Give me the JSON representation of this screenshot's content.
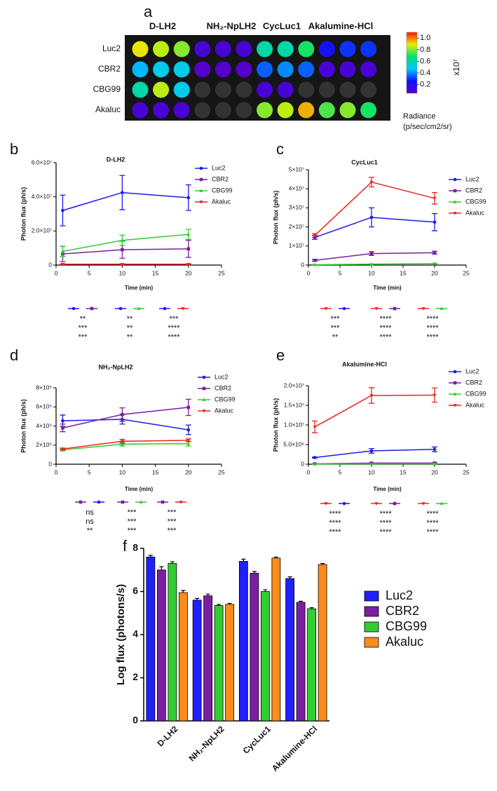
{
  "chart_data": [
    {
      "type": "heatmap",
      "panel": "a",
      "column_groups": [
        "D-LH2",
        "NH₂-NpLH2",
        "CycLuc1",
        "Akalumine-HCl"
      ],
      "rows": [
        "Luc2",
        "CBR2",
        "CBG99",
        "Akaluc"
      ],
      "values": [
        [
          0.9,
          0.85,
          0.8,
          0.1,
          0.1,
          0.1,
          0.6,
          0.6,
          0.7,
          0.25,
          0.3,
          0.3
        ],
        [
          0.45,
          0.5,
          0.5,
          0.06,
          0.06,
          0.06,
          0.35,
          0.4,
          0.35,
          0.1,
          0.1,
          0.1
        ],
        [
          0.6,
          0.85,
          0.5,
          0,
          0,
          0,
          0.1,
          0.1,
          0,
          0,
          0,
          0
        ],
        [
          0.1,
          0.1,
          0.1,
          0,
          0,
          0,
          0.8,
          0.85,
          0.95,
          0.75,
          0.8,
          0.7
        ]
      ],
      "clim": [
        0.05,
        1.1
      ],
      "cticks": [
        0.2,
        0.4,
        0.6,
        0.8,
        {
          "value": 1,
          "label": "1.0"
        }
      ],
      "colorbar_multiplier": "x10⁷",
      "colorbar_label": [
        "Radiance",
        "(p/sec/cm2/sr)"
      ],
      "colormap": [
        "#5a00c8",
        "#1010ff",
        "#00c8ff",
        "#00e070",
        "#e8f000",
        "#ff1010"
      ]
    },
    {
      "type": "line",
      "panel": "b",
      "title": "D-LH2",
      "xlabel": "Time (min)",
      "ylabel": "Photon flux (ph/s)",
      "x": [
        1,
        10,
        20
      ],
      "xlim": [
        0,
        25
      ],
      "xticks": [
        0,
        5,
        10,
        15,
        20,
        25
      ],
      "ylim": [
        0,
        60000000
      ],
      "yticks": [
        0,
        {
          "value": 20000000,
          "label": "2.0×10⁷"
        },
        {
          "value": 40000000,
          "label": "4.0×10⁷"
        },
        {
          "value": 60000000,
          "label": "6.0×10⁷"
        }
      ],
      "series": [
        {
          "name": "Luc2",
          "color": "#1a1aee",
          "marker": "circle",
          "values": [
            32000000,
            42500000,
            39500000
          ],
          "errors": [
            9000000,
            10000000,
            7500000
          ]
        },
        {
          "name": "CBR2",
          "color": "#7a1fa0",
          "marker": "square",
          "values": [
            6500000,
            9000000,
            9500000
          ],
          "errors": [
            4500000,
            5000000,
            5000000
          ]
        },
        {
          "name": "CBG99",
          "color": "#2ecc2e",
          "marker": "triangle",
          "values": [
            8000000,
            14500000,
            18000000
          ],
          "errors": [
            3000000,
            3000000,
            3000000
          ]
        },
        {
          "name": "Akaluc",
          "color": "#ee2222",
          "marker": "triangle-down",
          "values": [
            500000,
            500000,
            500000
          ],
          "errors": [
            200000,
            200000,
            200000
          ]
        }
      ],
      "comparisons": [
        {
          "pair": [
            0,
            1
          ],
          "stars": [
            "**",
            "***",
            "***"
          ]
        },
        {
          "pair": [
            0,
            2
          ],
          "stars": [
            "**",
            "**",
            "**"
          ]
        },
        {
          "pair": [
            0,
            3
          ],
          "stars": [
            "***",
            "****",
            "****"
          ]
        }
      ]
    },
    {
      "type": "line",
      "panel": "c",
      "title": "CycLuc1",
      "xlabel": "Time (min)",
      "ylabel": "Photon flux (ph/s)",
      "x": [
        1,
        10,
        20
      ],
      "xlim": [
        0,
        25
      ],
      "xticks": [
        0,
        5,
        10,
        15,
        20,
        25
      ],
      "ylim": [
        0,
        50000000
      ],
      "yticks": [
        0,
        {
          "value": 10000000,
          "label": "1×10⁷"
        },
        {
          "value": 20000000,
          "label": "2×10⁷"
        },
        {
          "value": 30000000,
          "label": "3×10⁷"
        },
        {
          "value": 40000000,
          "label": "4×10⁷"
        },
        {
          "value": 50000000,
          "label": "5×10⁷"
        }
      ],
      "series": [
        {
          "name": "Luc2",
          "color": "#1a1aee",
          "marker": "circle",
          "values": [
            14500000,
            25000000,
            22500000
          ],
          "errors": [
            1000000,
            5000000,
            4500000
          ]
        },
        {
          "name": "CBR2",
          "color": "#7a1fa0",
          "marker": "square",
          "values": [
            2500000,
            6000000,
            6500000
          ],
          "errors": [
            500000,
            1000000,
            800000
          ]
        },
        {
          "name": "CBG99",
          "color": "#2ecc2e",
          "marker": "triangle",
          "values": [
            200000,
            500000,
            800000
          ],
          "errors": [
            100000,
            100000,
            100000
          ]
        },
        {
          "name": "Akaluc",
          "color": "#ee2222",
          "marker": "triangle-down",
          "values": [
            15500000,
            43500000,
            35000000
          ],
          "errors": [
            1000000,
            2500000,
            3000000
          ]
        }
      ],
      "comparisons": [
        {
          "pair": [
            3,
            0
          ],
          "stars": [
            "***",
            "***",
            "**"
          ]
        },
        {
          "pair": [
            3,
            1
          ],
          "stars": [
            "****",
            "****",
            "****"
          ]
        },
        {
          "pair": [
            3,
            2
          ],
          "stars": [
            "****",
            "****",
            "****"
          ]
        }
      ]
    },
    {
      "type": "line",
      "panel": "d",
      "title": "NH₂-NpLH2",
      "xlabel": "Time (min)",
      "ylabel": "Photon flux (ph/s)",
      "x": [
        1,
        10,
        20
      ],
      "xlim": [
        0,
        25
      ],
      "xticks": [
        0,
        5,
        10,
        15,
        20,
        25
      ],
      "ylim": [
        0,
        800000
      ],
      "yticks": [
        0,
        {
          "value": 200000,
          "label": "2×10⁵"
        },
        {
          "value": 400000,
          "label": "4×10⁵"
        },
        {
          "value": 600000,
          "label": "6×10⁵"
        },
        {
          "value": 800000,
          "label": "8×10⁵"
        }
      ],
      "series": [
        {
          "name": "Luc2",
          "color": "#1a1aee",
          "marker": "circle",
          "values": [
            455000,
            470000,
            360000
          ],
          "errors": [
            60000,
            50000,
            50000
          ]
        },
        {
          "name": "CBR2",
          "color": "#7a1fa0",
          "marker": "square",
          "values": [
            380000,
            520000,
            595000
          ],
          "errors": [
            40000,
            70000,
            85000
          ]
        },
        {
          "name": "CBG99",
          "color": "#2ecc2e",
          "marker": "triangle",
          "values": [
            150000,
            210000,
            215000
          ],
          "errors": [
            10000,
            20000,
            25000
          ]
        },
        {
          "name": "Akaluc",
          "color": "#ee2222",
          "marker": "triangle-down",
          "values": [
            160000,
            240000,
            250000
          ],
          "errors": [
            10000,
            20000,
            15000
          ]
        }
      ],
      "comparisons": [
        {
          "pair": [
            1,
            0
          ],
          "stars": [
            "ns",
            "ns",
            "**"
          ]
        },
        {
          "pair": [
            1,
            2
          ],
          "stars": [
            "***",
            "***",
            "***"
          ]
        },
        {
          "pair": [
            1,
            3
          ],
          "stars": [
            "***",
            "***",
            "***"
          ]
        }
      ]
    },
    {
      "type": "line",
      "panel": "e",
      "title": "Akalumine-HCl",
      "xlabel": "Time (min)",
      "ylabel": "Photon flux (ph/s)",
      "x": [
        1,
        10,
        20
      ],
      "xlim": [
        0,
        25
      ],
      "xticks": [
        0,
        5,
        10,
        15,
        20,
        25
      ],
      "ylim": [
        0,
        20000000
      ],
      "yticks": [
        0,
        {
          "value": 5000000,
          "label": "5.0×10⁶"
        },
        {
          "value": 10000000,
          "label": "1.0×10⁷"
        },
        {
          "value": 15000000,
          "label": "1.5×10⁷"
        },
        {
          "value": 20000000,
          "label": "2.0×10⁷"
        }
      ],
      "series": [
        {
          "name": "Luc2",
          "color": "#1a1aee",
          "marker": "circle",
          "values": [
            1700000,
            3400000,
            3800000
          ],
          "errors": [
            100000,
            600000,
            600000
          ]
        },
        {
          "name": "CBR2",
          "color": "#7a1fa0",
          "marker": "square",
          "values": [
            100000,
            300000,
            300000
          ],
          "errors": [
            50000,
            50000,
            50000
          ]
        },
        {
          "name": "CBG99",
          "color": "#2ecc2e",
          "marker": "triangle",
          "values": [
            50000,
            100000,
            100000
          ],
          "errors": [
            20000,
            20000,
            20000
          ]
        },
        {
          "name": "Akaluc",
          "color": "#ee2222",
          "marker": "triangle-down",
          "values": [
            9500000,
            17500000,
            17600000
          ],
          "errors": [
            1500000,
            2000000,
            1800000
          ]
        }
      ],
      "comparisons": [
        {
          "pair": [
            3,
            0
          ],
          "stars": [
            "****",
            "****",
            "****"
          ]
        },
        {
          "pair": [
            3,
            1
          ],
          "stars": [
            "****",
            "****",
            "****"
          ]
        },
        {
          "pair": [
            3,
            2
          ],
          "stars": [
            "****",
            "****",
            "****"
          ]
        }
      ]
    },
    {
      "type": "bar",
      "panel": "f",
      "ylabel": "Log flux (photons/s)",
      "categories": [
        "D-LH2",
        "NH₂-NpLH2",
        "CycLuc1",
        "Akalumine-HCl"
      ],
      "ylim": [
        0,
        8
      ],
      "yticks": [
        0,
        2,
        4,
        6,
        8
      ],
      "series": [
        {
          "name": "Luc2",
          "color": "#2020ff",
          "values": [
            7.6,
            5.6,
            7.4,
            6.6
          ],
          "errors": [
            0.08,
            0.08,
            0.1,
            0.08
          ]
        },
        {
          "name": "CBR2",
          "color": "#7b1fa2",
          "values": [
            7.0,
            5.8,
            6.85,
            5.5
          ],
          "errors": [
            0.15,
            0.08,
            0.08,
            0.05
          ]
        },
        {
          "name": "CBG99",
          "color": "#33cc33",
          "values": [
            7.3,
            5.35,
            6.0,
            5.2
          ],
          "errors": [
            0.08,
            0.05,
            0.08,
            0.05
          ]
        },
        {
          "name": "Akaluc",
          "color": "#ff8c1a",
          "values": [
            5.95,
            5.4,
            7.55,
            7.25
          ],
          "errors": [
            0.1,
            0.05,
            0.05,
            0.05
          ]
        }
      ]
    }
  ]
}
